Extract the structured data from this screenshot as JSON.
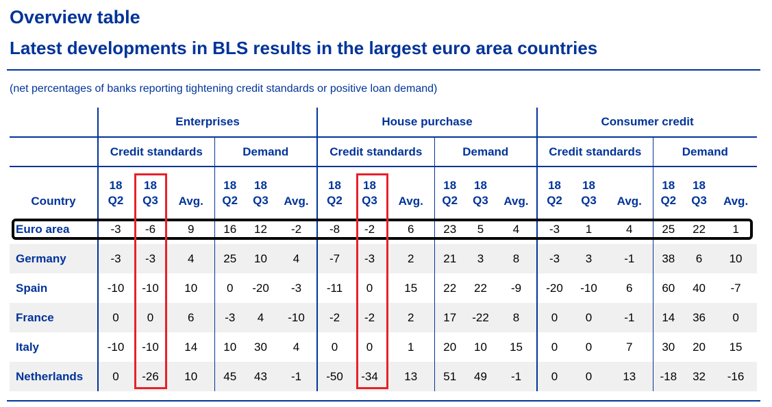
{
  "header": {
    "title": "Overview table",
    "subtitle": "Latest developments in BLS results in the largest euro area countries",
    "note": "(net percentages of banks reporting tightening credit standards or positive loan demand)"
  },
  "table": {
    "groups": [
      "Enterprises",
      "House purchase",
      "Consumer credit"
    ],
    "subgroups": [
      "Credit standards",
      "Demand"
    ],
    "country_header": "Country",
    "quarter_top": [
      "18",
      "18"
    ],
    "quarter_bottom": [
      "Q2",
      "Q3"
    ],
    "avg_label": "Avg.",
    "rows": [
      {
        "country": "Euro area",
        "values": [
          "-3",
          "-6",
          "9",
          "16",
          "12",
          "-2",
          "-8",
          "-2",
          "6",
          "23",
          "5",
          "4",
          "-3",
          "1",
          "4",
          "25",
          "22",
          "1"
        ]
      },
      {
        "country": "Germany",
        "values": [
          "-3",
          "-3",
          "4",
          "25",
          "10",
          "4",
          "-7",
          "-3",
          "2",
          "21",
          "3",
          "8",
          "-3",
          "3",
          "-1",
          "38",
          "6",
          "10"
        ]
      },
      {
        "country": "Spain",
        "values": [
          "-10",
          "-10",
          "10",
          "0",
          "-20",
          "-3",
          "-11",
          "0",
          "15",
          "22",
          "22",
          "-9",
          "-20",
          "-10",
          "6",
          "60",
          "40",
          "-7"
        ]
      },
      {
        "country": "France",
        "values": [
          "0",
          "0",
          "6",
          "-3",
          "4",
          "-10",
          "-2",
          "-2",
          "2",
          "17",
          "-22",
          "8",
          "0",
          "0",
          "-1",
          "14",
          "36",
          "0"
        ]
      },
      {
        "country": "Italy",
        "values": [
          "-10",
          "-10",
          "14",
          "10",
          "30",
          "4",
          "0",
          "0",
          "1",
          "20",
          "10",
          "15",
          "0",
          "0",
          "7",
          "30",
          "20",
          "15"
        ]
      },
      {
        "country": "Netherlands",
        "values": [
          "0",
          "-26",
          "10",
          "45",
          "43",
          "-1",
          "-50",
          "-34",
          "13",
          "51",
          "49",
          "-1",
          "0",
          "0",
          "13",
          "-18",
          "32",
          "-16"
        ]
      }
    ]
  }
}
